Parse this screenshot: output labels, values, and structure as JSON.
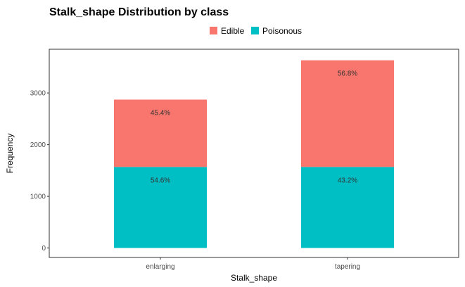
{
  "chart_data": {
    "type": "bar",
    "stacked": true,
    "title": "Stalk_shape Distribution by class",
    "xlabel": "Stalk_shape",
    "ylabel": "Frequency",
    "categories": [
      "enlarging",
      "tapering"
    ],
    "series": [
      {
        "name": "Poisonous",
        "color": "#00BFC4",
        "values": [
          1568,
          1568
        ],
        "labels": [
          "54.6%",
          "43.2%"
        ]
      },
      {
        "name": "Edible",
        "color": "#F8766D",
        "values": [
          1304,
          2064
        ],
        "labels": [
          "45.4%",
          "56.8%"
        ]
      }
    ],
    "legend": {
      "position": "top",
      "order": [
        "Edible",
        "Poisonous"
      ]
    },
    "yticks": [
      0,
      1000,
      2000,
      3000
    ],
    "ylim": [
      -183,
      3846
    ],
    "grid": false
  }
}
